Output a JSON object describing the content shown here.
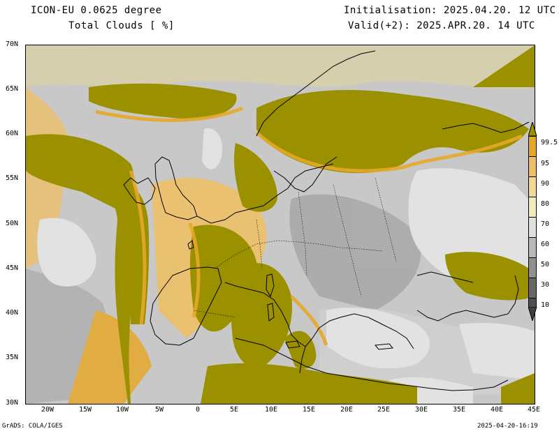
{
  "header": {
    "model_title": "ICON-EU 0.0625 degree",
    "variable": "Total Clouds  [ %]",
    "init": "Initialisation: 2025.04.20. 12 UTC",
    "valid": "Valid(+2): 2025.APR.20. 14 UTC"
  },
  "footer": {
    "credit": "GrADS: COLA/IGES",
    "timestamp": "2025-04-20-16:19"
  },
  "map": {
    "lat_labels": [
      "70N",
      "65N",
      "60N",
      "55N",
      "50N",
      "45N",
      "40N",
      "35N",
      "30N"
    ],
    "lon_labels": [
      "20W",
      "15W",
      "10W",
      "5W",
      "0",
      "5E",
      "10E",
      "15E",
      "20E",
      "25E",
      "30E",
      "35E",
      "40E",
      "45E"
    ]
  },
  "legend": {
    "labels": [
      "99.5",
      "95",
      "90",
      "80",
      "70",
      "60",
      "50",
      "30",
      "10"
    ],
    "colors": [
      "#9a9000",
      "#e6a82a",
      "#eec060",
      "#f2d890",
      "#f2ecb8",
      "#e0e0e0",
      "#b8b8b8",
      "#909090",
      "#686868",
      "#505050"
    ]
  },
  "colors": {
    "overcast": "#9a9000",
    "clear": "#e0e0e0",
    "orange": "#e6a82a",
    "coastline": "#000000"
  }
}
